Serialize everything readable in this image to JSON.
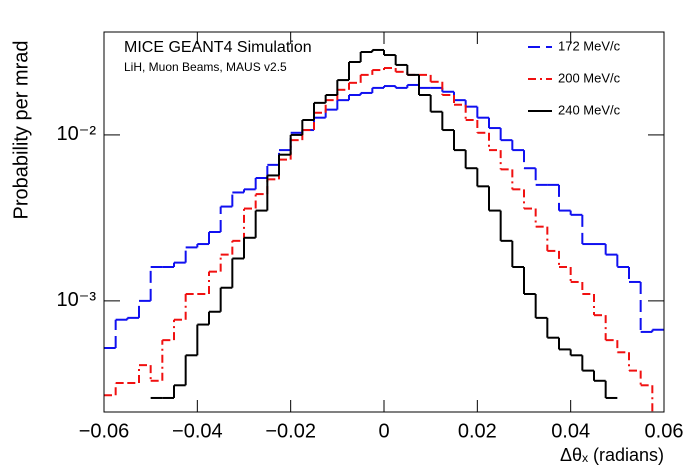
{
  "chart_data": {
    "type": "histogram",
    "title": "MICE GEANT4 Simulation",
    "subtitle": "LiH, Muon Beams, MAUS v2.5",
    "x_label": "Δθₓ (radians)",
    "y_label": "Probability per mrad",
    "log_y": true,
    "legend": "top-right",
    "bins": [
      -0.06,
      -0.0575,
      -0.055,
      -0.0525,
      -0.05,
      -0.0475,
      -0.045,
      -0.0425,
      -0.04,
      -0.0375,
      -0.035,
      -0.0325,
      -0.03,
      -0.0275,
      -0.025,
      -0.0225,
      -0.02,
      -0.0175,
      -0.015,
      -0.0125,
      -0.01,
      -0.0075,
      -0.005,
      -0.0025,
      0,
      0.0025,
      0.005,
      0.0075,
      0.01,
      0.0125,
      0.015,
      0.0175,
      0.02,
      0.0225,
      0.025,
      0.0275,
      0.03,
      0.0325,
      0.035,
      0.0375,
      0.04,
      0.0425,
      0.045,
      0.0475,
      0.05,
      0.0525,
      0.055,
      0.0575,
      0.06
    ],
    "series": [
      {
        "name": "172 MeV/c",
        "color": "#1010f0",
        "linestyle": "dashed",
        "values": [
          0.00052,
          0.00077,
          0.00079,
          0.001,
          0.0016,
          0.0016,
          0.0017,
          0.0021,
          0.0022,
          0.0026,
          0.0037,
          0.0045,
          0.0047,
          0.0055,
          0.0066,
          0.0081,
          0.0103,
          0.0107,
          0.0127,
          0.0142,
          0.0162,
          0.0174,
          0.0179,
          0.0192,
          0.0197,
          0.0192,
          0.02,
          0.0192,
          0.0192,
          0.0182,
          0.0162,
          0.0148,
          0.0127,
          0.011,
          0.0093,
          0.0081,
          0.0063,
          0.005,
          0.005,
          0.0035,
          0.0033,
          0.0022,
          0.0022,
          0.0019,
          0.0016,
          0.0013,
          0.00065,
          0.00067
        ]
      },
      {
        "name": "200 MeV/c",
        "color": "#f01010",
        "linestyle": "dashdot",
        "values": [
          0.00027,
          0.00032,
          0.00032,
          0.00041,
          0.00033,
          0.00058,
          0.00077,
          0.0011,
          0.0011,
          0.0015,
          0.0019,
          0.0023,
          0.0036,
          0.0044,
          0.0054,
          0.0071,
          0.0093,
          0.0107,
          0.0136,
          0.0162,
          0.0187,
          0.0206,
          0.023,
          0.0246,
          0.0253,
          0.024,
          0.023,
          0.023,
          0.0209,
          0.0174,
          0.0152,
          0.0123,
          0.0103,
          0.0081,
          0.0062,
          0.0047,
          0.0036,
          0.0028,
          0.002,
          0.0016,
          0.0013,
          0.0011,
          0.00082,
          0.00058,
          0.00049,
          0.00038,
          0.00031,
          0.0002
        ]
      },
      {
        "name": "240 MeV/c",
        "color": "#000000",
        "linestyle": "solid",
        "values": [
          null,
          null,
          null,
          null,
          0.00026,
          0.00026,
          0.00031,
          0.00047,
          0.00072,
          0.00086,
          0.0012,
          0.0018,
          0.0024,
          0.0035,
          0.0057,
          0.0076,
          0.01,
          0.0123,
          0.0156,
          0.0174,
          0.0214,
          0.0275,
          0.0316,
          0.0325,
          0.0303,
          0.0264,
          0.023,
          0.0174,
          0.0138,
          0.0107,
          0.0081,
          0.0063,
          0.0049,
          0.0035,
          0.0023,
          0.0016,
          0.0011,
          0.00079,
          0.0006,
          0.00051,
          0.00047,
          0.00038,
          0.00033,
          0.00026,
          null,
          null,
          null,
          null
        ]
      }
    ],
    "xlim": [
      -0.06,
      0.06
    ],
    "xticks": [
      {
        "value": -0.06,
        "label": "−0.06"
      },
      {
        "value": -0.04,
        "label": "−0.04"
      },
      {
        "value": -0.02,
        "label": "−0.02"
      },
      0,
      0.02,
      0.04,
      0.06
    ],
    "ylim": [
      0.000214,
      0.0417
    ],
    "yticks": [
      {
        "value": 0.001,
        "label": "10⁻³"
      },
      {
        "value": 0.01,
        "label": "10⁻²"
      }
    ]
  }
}
